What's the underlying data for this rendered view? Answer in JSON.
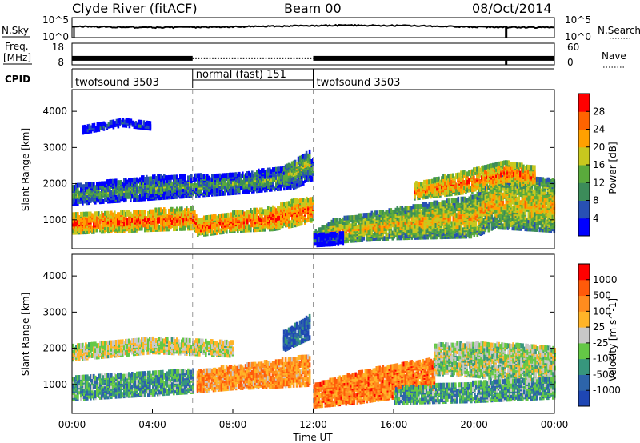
{
  "header": {
    "station": "Clyde River (fitACF)",
    "beam": "Beam 00",
    "date": "08/Oct/2014"
  },
  "panel_labels": {
    "nsky": "N.Sky",
    "nsearch": "N.Search",
    "freq_line1": "Freq.",
    "freq_line2": "[MHz]",
    "nave": "Nave",
    "cpid": "CPID"
  },
  "chart_data": [
    {
      "type": "line",
      "name": "noise",
      "series": [
        {
          "name": "N.Sky",
          "style": "solid"
        },
        {
          "name": "N.Search",
          "style": "dotted"
        }
      ],
      "left_ticks": [
        "10^5",
        "10^0"
      ],
      "right_ticks": [
        "10^5",
        "10^0"
      ],
      "dropouts_ut_hours": [
        0.1,
        21.6
      ]
    },
    {
      "type": "line",
      "name": "frequency-nave",
      "series": [
        {
          "name": "Freq. [MHz]",
          "style": "solid",
          "approx_value": 11
        },
        {
          "name": "Nave",
          "style": "dotted"
        }
      ],
      "left_ticks": [
        "18",
        "8"
      ],
      "right_ticks": [
        "60",
        "0"
      ],
      "dotted_segment_ut_hours": [
        6.0,
        12.0
      ],
      "dropouts_ut_hours": [
        21.6
      ]
    },
    {
      "type": "table",
      "name": "cpid",
      "segments": [
        {
          "label": "twofsound 3503",
          "start": 0,
          "end": 6.0
        },
        {
          "label": "normal (fast) 151",
          "start": 6.0,
          "end": 12.0
        },
        {
          "label": "twofsound 3503",
          "start": 12.0,
          "end": 24
        }
      ]
    },
    {
      "type": "heatmap",
      "name": "power",
      "xlabel": "",
      "ylabel": "Slant Range [km]",
      "xlim": [
        0,
        24
      ],
      "ylim": [
        200,
        4600
      ],
      "yticks": [
        1000,
        2000,
        3000,
        4000
      ],
      "colorbar": {
        "label": "Power [dB]",
        "ticks": [
          "4",
          "8",
          "12",
          "16",
          "20",
          "24",
          "28"
        ],
        "colors": [
          "#0000ff",
          "#2850b4",
          "#3c8c5a",
          "#5aaa3c",
          "#c8c81e",
          "#ffa000",
          "#ff6400",
          "#ff0000"
        ]
      },
      "bands": [
        {
          "t": [
            0,
            6,
            6.2,
            8,
            10,
            11,
            12
          ],
          "center": [
            900,
            1050,
            800,
            950,
            1050,
            1200,
            1300
          ],
          "halfwidth": [
            250,
            280,
            220,
            250,
            300,
            350,
            300
          ],
          "level": 0.85
        },
        {
          "t": [
            12,
            13,
            16,
            20,
            21,
            24
          ],
          "center": [
            500,
            700,
            900,
            1100,
            1500,
            1400
          ],
          "halfwidth": [
            150,
            300,
            400,
            550,
            700,
            700
          ],
          "level": 0.65
        },
        {
          "t": [
            17,
            20,
            21.5,
            23
          ],
          "center": [
            1800,
            2100,
            2300,
            2200
          ],
          "halfwidth": [
            200,
            300,
            300,
            250
          ],
          "level": 0.8
        },
        {
          "t": [
            0,
            4,
            8,
            11,
            12
          ],
          "center": [
            1700,
            1900,
            2000,
            2200,
            2400
          ],
          "halfwidth": [
            250,
            300,
            250,
            300,
            250
          ],
          "level": 0.4
        },
        {
          "t": [
            10.5,
            11.8
          ],
          "center": [
            2200,
            2600
          ],
          "halfwidth": [
            250,
            300
          ],
          "level": 0.55
        },
        {
          "t": [
            12,
            13.5
          ],
          "center": [
            450,
            500
          ],
          "halfwidth": [
            150,
            150
          ],
          "level": 0.15
        },
        {
          "t": [
            0.5,
            2.5,
            4
          ],
          "center": [
            3500,
            3700,
            3600
          ],
          "halfwidth": [
            80,
            80,
            80
          ],
          "level": 0.25
        }
      ]
    },
    {
      "type": "heatmap",
      "name": "velocity",
      "xlabel": "Time UT",
      "ylabel": "Slant Range [km]",
      "xlim": [
        0,
        24
      ],
      "ylim": [
        200,
        4600
      ],
      "yticks": [
        1000,
        2000,
        3000,
        4000
      ],
      "xticks": [
        "00:00",
        "04:00",
        "08:00",
        "12:00",
        "16:00",
        "20:00",
        "00:00"
      ],
      "colorbar": {
        "label": "Velocity [m s^-1]",
        "ticks": [
          "1000",
          "500",
          "100",
          "25",
          "-25",
          "-100",
          "-500",
          "-1000"
        ],
        "colors": [
          "#1e46b4",
          "#2d64aa",
          "#37967d",
          "#64c846",
          "#c8c8c8",
          "#ffb428",
          "#ff8c1e",
          "#ff5a0a",
          "#ff0000"
        ]
      },
      "bands": [
        {
          "t": [
            0,
            3,
            6
          ],
          "center": [
            900,
            1000,
            1100
          ],
          "halfwidth": [
            300,
            300,
            300
          ],
          "level": 0.3
        },
        {
          "t": [
            6.2,
            8,
            10,
            11.8
          ],
          "center": [
            1100,
            1200,
            1300,
            1400
          ],
          "halfwidth": [
            280,
            300,
            350,
            400
          ],
          "level": 0.7
        },
        {
          "t": [
            12,
            14,
            16,
            18
          ],
          "center": [
            700,
            900,
            1100,
            1300
          ],
          "halfwidth": [
            300,
            400,
            450,
            400
          ],
          "level": 0.75
        },
        {
          "t": [
            18,
            20,
            22,
            24
          ],
          "center": [
            1700,
            1700,
            1600,
            1500
          ],
          "halfwidth": [
            400,
            450,
            500,
            500
          ],
          "level": 0.45
        },
        {
          "t": [
            16,
            20,
            24
          ],
          "center": [
            700,
            800,
            900
          ],
          "halfwidth": [
            200,
            250,
            250
          ],
          "level": 0.3
        },
        {
          "t": [
            0,
            4,
            8
          ],
          "center": [
            1900,
            2100,
            2000
          ],
          "halfwidth": [
            200,
            200,
            200
          ],
          "level": 0.5
        },
        {
          "t": [
            10.5,
            11.8
          ],
          "center": [
            2200,
            2600
          ],
          "halfwidth": [
            250,
            300
          ],
          "level": 0.1
        }
      ]
    }
  ]
}
